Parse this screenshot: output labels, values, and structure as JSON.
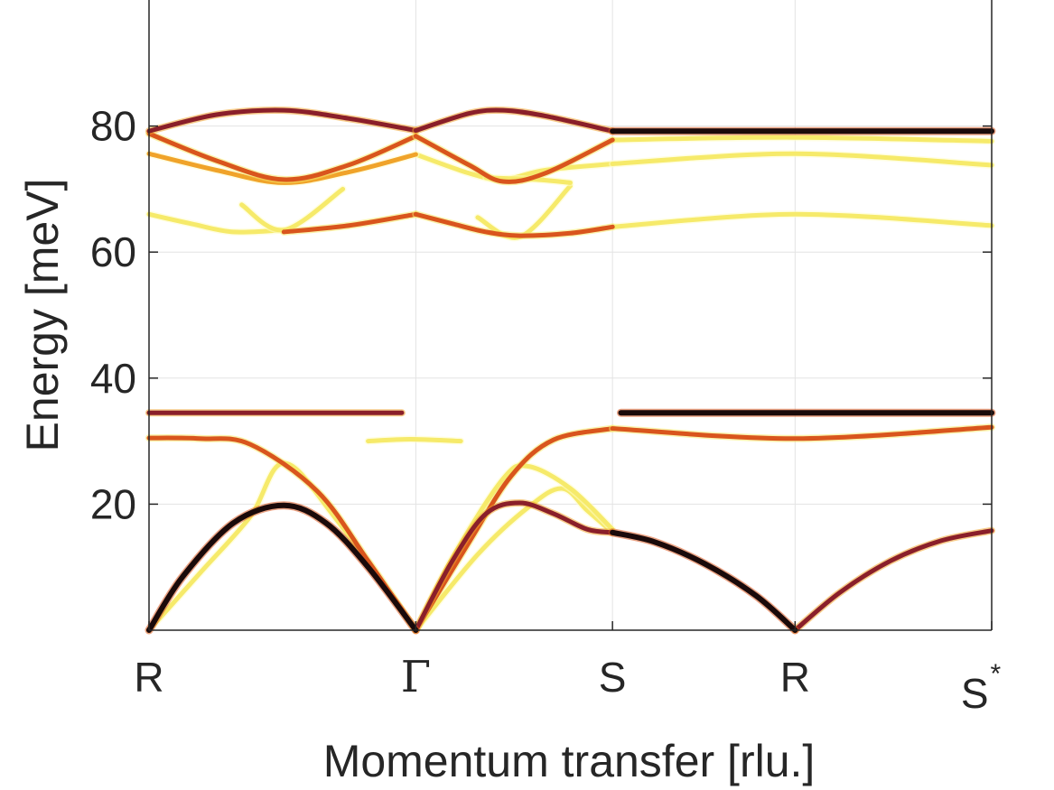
{
  "chart_data": {
    "type": "line",
    "title": "",
    "xlabel": "Momentum transfer [rlu.]",
    "ylabel": "Energy [meV]",
    "ylim": [
      0,
      100
    ],
    "yticks": [
      "20",
      "40",
      "60",
      "80"
    ],
    "xlim": [
      0,
      1
    ],
    "xticks": [
      {
        "label": "R",
        "x": 0.0,
        "symbol": false
      },
      {
        "label": "Γ",
        "x": 0.3166,
        "symbol": true
      },
      {
        "label": "S",
        "x": 0.55,
        "symbol": false
      },
      {
        "label": "R",
        "x": 0.7667,
        "symbol": false
      },
      {
        "label": "S",
        "sup": "*",
        "x": 1.0,
        "symbol": false
      }
    ],
    "grid": true,
    "colormap": [
      "#fffec8",
      "#f6ea6a",
      "#f0a32a",
      "#d9551d",
      "#8a1f2a",
      "#1a0a0a"
    ],
    "series": [
      {
        "x": [
          0,
          0.08,
          0.16,
          0.2366,
          0.3166
        ],
        "y": [
          79.2,
          81.8,
          82.5,
          81.2,
          79.3
        ],
        "intensity": 4
      },
      {
        "x": [
          0.3166,
          0.38,
          0.42,
          0.47,
          0.55
        ],
        "y": [
          79.3,
          82.0,
          82.5,
          81.6,
          79.2
        ],
        "intensity": 4
      },
      {
        "x": [
          0.55,
          0.7667,
          1.0
        ],
        "y": [
          79.2,
          79.2,
          79.2
        ],
        "intensity": 5
      },
      {
        "x": [
          0.55,
          0.7667,
          1.0
        ],
        "y": [
          77.8,
          78.2,
          77.6
        ],
        "intensity": 1
      },
      {
        "x": [
          0,
          0.08,
          0.16,
          0.2366,
          0.3166
        ],
        "y": [
          78.8,
          74.5,
          71.5,
          73.8,
          78.4
        ],
        "intensity": 3
      },
      {
        "x": [
          0,
          0.08,
          0.16,
          0.24,
          0.3166
        ],
        "y": [
          75.6,
          73.0,
          71.0,
          72.8,
          75.5
        ],
        "intensity": 2
      },
      {
        "x": [
          0.3166,
          0.38,
          0.42,
          0.47,
          0.55
        ],
        "y": [
          78.4,
          73.8,
          71.2,
          72.5,
          77.8
        ],
        "intensity": 3
      },
      {
        "x": [
          0.3166,
          0.38,
          0.42,
          0.47,
          0.55
        ],
        "y": [
          75.5,
          72.5,
          71.5,
          73.0,
          74.0
        ],
        "intensity": 1
      },
      {
        "x": [
          0.55,
          0.7667,
          1.0
        ],
        "y": [
          74.0,
          75.6,
          73.8
        ],
        "intensity": 1
      },
      {
        "x": [
          0,
          0.05,
          0.1,
          0.16
        ],
        "y": [
          66.0,
          64.5,
          63.2,
          63.5
        ],
        "intensity": 1
      },
      {
        "x": [
          0.16,
          0.2366,
          0.3166
        ],
        "y": [
          63.2,
          64.2,
          66.0
        ],
        "intensity": 3
      },
      {
        "x": [
          0.3166,
          0.36,
          0.4,
          0.44,
          0.5,
          0.55
        ],
        "y": [
          66.0,
          64.5,
          63.2,
          62.6,
          63.0,
          64.0
        ],
        "intensity": 3
      },
      {
        "x": [
          0.55,
          0.7667,
          1.0
        ],
        "y": [
          64.0,
          66.0,
          64.2
        ],
        "intensity": 1
      },
      {
        "x": [
          0.11,
          0.16,
          0.23
        ],
        "y": [
          67.5,
          63.5,
          70.0
        ],
        "intensity": 1
      },
      {
        "x": [
          0.39,
          0.44,
          0.5
        ],
        "y": [
          65.5,
          62.4,
          70.5
        ],
        "intensity": 1
      },
      {
        "x": [
          0.4,
          0.46,
          0.5
        ],
        "y": [
          71.8,
          71.5,
          71.0
        ],
        "intensity": 1
      },
      {
        "x": [
          0,
          0.1,
          0.2,
          0.3
        ],
        "y": [
          34.5,
          34.5,
          34.5,
          34.5
        ],
        "intensity": 4
      },
      {
        "x": [
          0.56,
          0.7,
          0.85,
          1.0
        ],
        "y": [
          34.5,
          34.5,
          34.5,
          34.5
        ],
        "intensity": 5
      },
      {
        "x": [
          0.26,
          0.31,
          0.37
        ],
        "y": [
          30.0,
          30.3,
          30.0
        ],
        "intensity": 1
      },
      {
        "x": [
          0,
          0.06,
          0.12,
          0.2,
          0.26,
          0.3166
        ],
        "y": [
          30.5,
          30.4,
          29.5,
          22.0,
          11.0,
          0.0
        ],
        "intensity": 3
      },
      {
        "x": [
          0.3166,
          0.38,
          0.43,
          0.48,
          0.55
        ],
        "y": [
          0.0,
          14.0,
          24.5,
          30.2,
          32.0
        ],
        "intensity": 3
      },
      {
        "x": [
          0.55,
          0.7667,
          1.0
        ],
        "y": [
          32.0,
          30.4,
          32.2
        ],
        "intensity": 3
      },
      {
        "x": [
          0,
          0.04,
          0.1,
          0.16,
          0.21,
          0.26,
          0.3166
        ],
        "y": [
          0.0,
          8.5,
          17.0,
          19.8,
          17.0,
          10.0,
          0.0
        ],
        "intensity": 5
      },
      {
        "x": [
          0.3166,
          0.36,
          0.4,
          0.44,
          0.48,
          0.52,
          0.55
        ],
        "y": [
          0.0,
          11.0,
          18.5,
          20.2,
          18.5,
          16.0,
          15.5
        ],
        "intensity": 4
      },
      {
        "x": [
          0.55,
          0.6,
          0.66,
          0.72,
          0.7667
        ],
        "y": [
          15.5,
          14.0,
          10.5,
          5.5,
          0.0
        ],
        "intensity": 5
      },
      {
        "x": [
          0.7667,
          0.82,
          0.88,
          0.94,
          1.0
        ],
        "y": [
          0.0,
          6.0,
          11.0,
          14.2,
          15.8
        ],
        "intensity": 4
      },
      {
        "x": [
          0.3166,
          0.39,
          0.45,
          0.49,
          0.52,
          0.55
        ],
        "y": [
          0.0,
          12.0,
          19.5,
          22.5,
          19.0,
          15.5
        ],
        "intensity": 1
      },
      {
        "x": [
          0,
          0.06,
          0.12,
          0.16,
          0.22,
          0.3166
        ],
        "y": [
          0.0,
          9.0,
          18.0,
          26.5,
          18.0,
          0.0
        ],
        "intensity": 1
      },
      {
        "x": [
          0.3166,
          0.36,
          0.42,
          0.45,
          0.5,
          0.55
        ],
        "y": [
          0.0,
          11.5,
          24.0,
          26.0,
          22.5,
          16.0
        ],
        "intensity": 1
      }
    ]
  }
}
